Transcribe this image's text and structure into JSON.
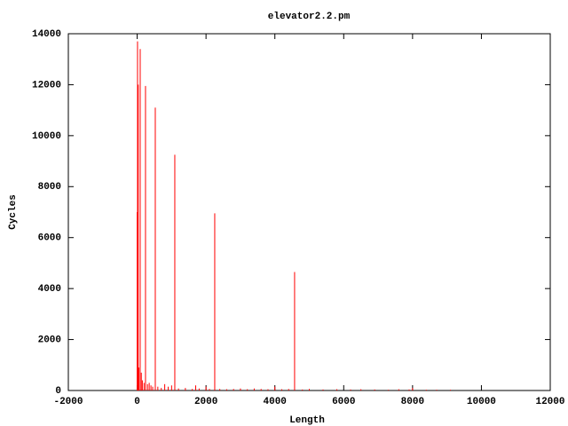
{
  "chart_data": {
    "type": "impulse",
    "title": "elevator2.2.pm",
    "x_label": "Length",
    "y_label": "Cycles",
    "color": "#ff0000",
    "x": [
      0,
      10,
      30,
      50,
      88,
      120,
      150,
      200,
      242,
      300,
      350,
      400,
      450,
      526,
      600,
      700,
      800,
      900,
      1000,
      1093,
      1200,
      1400,
      1600,
      1700,
      1800,
      2000,
      2100,
      2253,
      2400,
      2600,
      2800,
      3000,
      3200,
      3400,
      3600,
      3800,
      4000,
      4200,
      4400,
      4573,
      4800,
      5000,
      5400,
      5800,
      6200,
      6500,
      6900,
      7300,
      7600,
      7900,
      8000,
      8400,
      8700,
      9100
    ],
    "values": [
      7000,
      13700,
      12000,
      900,
      13400,
      700,
      400,
      300,
      11950,
      250,
      300,
      200,
      150,
      11100,
      150,
      100,
      250,
      150,
      200,
      9250,
      80,
      100,
      60,
      200,
      80,
      150,
      60,
      6950,
      60,
      50,
      60,
      80,
      50,
      80,
      60,
      50,
      150,
      50,
      60,
      4650,
      40,
      60,
      40,
      50,
      40,
      50,
      40,
      30,
      50,
      40,
      100,
      30,
      30,
      30
    ],
    "xlim": [
      -2000,
      12000
    ],
    "xticks": [
      -2000,
      0,
      2000,
      4000,
      6000,
      8000,
      10000,
      12000
    ],
    "ylim": [
      0,
      14000
    ],
    "yticks": [
      0,
      2000,
      4000,
      6000,
      8000,
      10000,
      12000,
      14000
    ],
    "grid": false
  }
}
